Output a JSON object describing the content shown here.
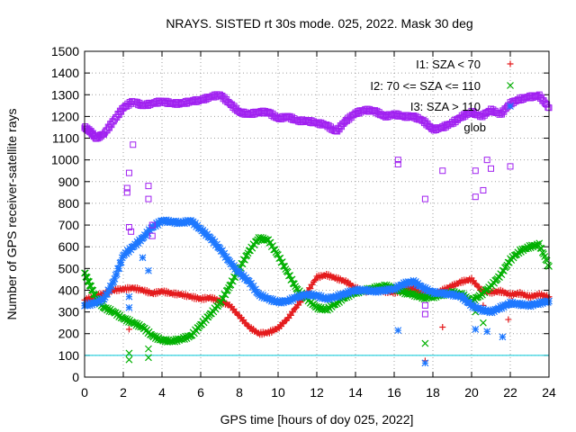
{
  "chart_data": {
    "type": "scatter",
    "title": "NRAYS. SISTED rt 30s mode. 025, 2022. Mask 30 deg",
    "xlabel": "GPS time [hours of doy 025, 2022]",
    "ylabel": "Number of GPS receiver-satellite rays",
    "xlim": [
      0,
      24
    ],
    "ylim": [
      0,
      1500
    ],
    "xticks": [
      0,
      2,
      4,
      6,
      8,
      10,
      12,
      14,
      16,
      18,
      20,
      22,
      24
    ],
    "xtick_labels": [
      "0",
      "2",
      "4",
      "6",
      "8",
      "10",
      "12",
      "14",
      "16",
      "18",
      "20",
      "22",
      "24"
    ],
    "yticks": [
      0,
      100,
      200,
      300,
      400,
      500,
      600,
      700,
      800,
      900,
      1000,
      1100,
      1200,
      1300,
      1400,
      1500
    ],
    "ytick_labels": [
      "0",
      "100",
      "200",
      "300",
      "400",
      "500",
      "600",
      "700",
      "800",
      "900",
      "1000",
      "1100",
      "1200",
      "1300",
      "1400",
      "1500"
    ],
    "grid": true,
    "legend_position": "top-right",
    "reference_line": {
      "y": 100,
      "color": "#00c8d8"
    },
    "series": [
      {
        "name": "I1: SZA < 70",
        "marker": "plus",
        "color": "#e41a1c",
        "points": [
          [
            0,
            355
          ],
          [
            0.5,
            370
          ],
          [
            1,
            385
          ],
          [
            1.5,
            400
          ],
          [
            2,
            405
          ],
          [
            2.5,
            410
          ],
          [
            3,
            400
          ],
          [
            3.5,
            385
          ],
          [
            4,
            395
          ],
          [
            4.5,
            385
          ],
          [
            5,
            380
          ],
          [
            5.5,
            370
          ],
          [
            6,
            360
          ],
          [
            6.5,
            365
          ],
          [
            7,
            350
          ],
          [
            7.5,
            330
          ],
          [
            8,
            280
          ],
          [
            8.5,
            230
          ],
          [
            9,
            200
          ],
          [
            9.5,
            205
          ],
          [
            10,
            225
          ],
          [
            10.5,
            270
          ],
          [
            11,
            330
          ],
          [
            11.5,
            390
          ],
          [
            12,
            460
          ],
          [
            12.5,
            470
          ],
          [
            13,
            455
          ],
          [
            13.5,
            440
          ],
          [
            14,
            410
          ],
          [
            14.5,
            395
          ],
          [
            15,
            400
          ],
          [
            15.5,
            395
          ],
          [
            16,
            390
          ],
          [
            16.5,
            400
          ],
          [
            17,
            410
          ],
          [
            17.5,
            380
          ],
          [
            18,
            380
          ],
          [
            18.5,
            400
          ],
          [
            19,
            420
          ],
          [
            19.5,
            440
          ],
          [
            20,
            450
          ],
          [
            20.5,
            400
          ],
          [
            21,
            390
          ],
          [
            21.5,
            395
          ],
          [
            22,
            380
          ],
          [
            22.5,
            385
          ],
          [
            23,
            370
          ],
          [
            23.5,
            380
          ],
          [
            24,
            370
          ]
        ],
        "outliers": [
          [
            2.3,
            220
          ],
          [
            17.6,
            75
          ],
          [
            18.5,
            230
          ],
          [
            21.9,
            265
          ],
          [
            20.6,
            330
          ],
          [
            22.1,
            350
          ]
        ]
      },
      {
        "name": "I2: 70 <= SZA <= 110",
        "marker": "cross",
        "color": "#00b000",
        "points": [
          [
            0,
            480
          ],
          [
            0.3,
            420
          ],
          [
            0.6,
            360
          ],
          [
            1,
            320
          ],
          [
            1.5,
            300
          ],
          [
            2,
            270
          ],
          [
            2.5,
            250
          ],
          [
            3,
            230
          ],
          [
            3.5,
            190
          ],
          [
            4,
            170
          ],
          [
            4.5,
            165
          ],
          [
            5,
            175
          ],
          [
            5.5,
            190
          ],
          [
            6,
            240
          ],
          [
            6.5,
            290
          ],
          [
            7,
            340
          ],
          [
            7.5,
            420
          ],
          [
            8,
            500
          ],
          [
            8.5,
            580
          ],
          [
            9,
            640
          ],
          [
            9.5,
            630
          ],
          [
            10,
            560
          ],
          [
            10.5,
            480
          ],
          [
            11,
            400
          ],
          [
            11.5,
            360
          ],
          [
            12,
            320
          ],
          [
            12.5,
            310
          ],
          [
            13,
            340
          ],
          [
            13.5,
            370
          ],
          [
            14,
            390
          ],
          [
            14.5,
            400
          ],
          [
            15,
            410
          ],
          [
            15.5,
            420
          ],
          [
            16,
            410
          ],
          [
            16.5,
            390
          ],
          [
            17,
            380
          ],
          [
            17.5,
            365
          ],
          [
            18,
            370
          ],
          [
            18.5,
            380
          ],
          [
            19,
            390
          ],
          [
            19.5,
            380
          ],
          [
            20,
            350
          ],
          [
            20.5,
            380
          ],
          [
            21,
            420
          ],
          [
            21.5,
            470
          ],
          [
            22,
            540
          ],
          [
            22.5,
            580
          ],
          [
            23,
            600
          ],
          [
            23.5,
            610
          ],
          [
            24,
            510
          ]
        ],
        "outliers": [
          [
            2.3,
            80
          ],
          [
            2.3,
            110
          ],
          [
            3.3,
            90
          ],
          [
            3.3,
            130
          ],
          [
            17.6,
            155
          ],
          [
            20.2,
            300
          ],
          [
            20.6,
            250
          ]
        ]
      },
      {
        "name": "I3: SZA > 110",
        "marker": "star",
        "color": "#1e78ff",
        "points": [
          [
            0,
            330
          ],
          [
            0.5,
            340
          ],
          [
            1,
            360
          ],
          [
            1.5,
            440
          ],
          [
            2,
            560
          ],
          [
            2.5,
            600
          ],
          [
            3,
            640
          ],
          [
            3.5,
            690
          ],
          [
            4,
            720
          ],
          [
            4.5,
            715
          ],
          [
            5,
            710
          ],
          [
            5.5,
            720
          ],
          [
            6,
            680
          ],
          [
            6.5,
            640
          ],
          [
            7,
            590
          ],
          [
            7.5,
            530
          ],
          [
            8,
            480
          ],
          [
            8.5,
            440
          ],
          [
            9,
            380
          ],
          [
            9.5,
            360
          ],
          [
            10,
            345
          ],
          [
            10.5,
            350
          ],
          [
            11,
            370
          ],
          [
            11.5,
            380
          ],
          [
            12,
            375
          ],
          [
            12.5,
            360
          ],
          [
            13,
            370
          ],
          [
            13.5,
            385
          ],
          [
            14,
            400
          ],
          [
            14.5,
            400
          ],
          [
            15,
            395
          ],
          [
            15.5,
            400
          ],
          [
            16,
            405
          ],
          [
            16.5,
            430
          ],
          [
            17,
            440
          ],
          [
            17.5,
            410
          ],
          [
            18,
            390
          ],
          [
            18.5,
            385
          ],
          [
            19,
            380
          ],
          [
            19.5,
            370
          ],
          [
            20,
            330
          ],
          [
            20.5,
            310
          ],
          [
            21,
            300
          ],
          [
            21.5,
            320
          ],
          [
            22,
            340
          ],
          [
            22.5,
            335
          ],
          [
            23,
            330
          ],
          [
            23.5,
            340
          ],
          [
            24,
            350
          ]
        ],
        "outliers": [
          [
            2.3,
            370
          ],
          [
            2.3,
            320
          ],
          [
            3,
            550
          ],
          [
            3.3,
            490
          ],
          [
            16.2,
            215
          ],
          [
            17.6,
            65
          ],
          [
            20.2,
            220
          ],
          [
            20.8,
            210
          ],
          [
            21.6,
            185
          ]
        ]
      },
      {
        "name": "global",
        "legend_partial": "glob",
        "marker": "square",
        "color": "#a020f0",
        "points": [
          [
            0,
            1150
          ],
          [
            0.3,
            1130
          ],
          [
            0.6,
            1100
          ],
          [
            1,
            1120
          ],
          [
            1.5,
            1180
          ],
          [
            2,
            1240
          ],
          [
            2.5,
            1270
          ],
          [
            3,
            1250
          ],
          [
            3.5,
            1260
          ],
          [
            4,
            1270
          ],
          [
            4.5,
            1260
          ],
          [
            5,
            1260
          ],
          [
            5.5,
            1270
          ],
          [
            6,
            1275
          ],
          [
            6.5,
            1290
          ],
          [
            7,
            1300
          ],
          [
            7.5,
            1260
          ],
          [
            8,
            1220
          ],
          [
            8.5,
            1210
          ],
          [
            9,
            1220
          ],
          [
            9.5,
            1220
          ],
          [
            10,
            1190
          ],
          [
            10.5,
            1200
          ],
          [
            11,
            1180
          ],
          [
            11.5,
            1180
          ],
          [
            12,
            1170
          ],
          [
            12.5,
            1160
          ],
          [
            13,
            1130
          ],
          [
            13.5,
            1180
          ],
          [
            14,
            1215
          ],
          [
            14.5,
            1230
          ],
          [
            15,
            1225
          ],
          [
            15.5,
            1200
          ],
          [
            16,
            1210
          ],
          [
            16.5,
            1200
          ],
          [
            17,
            1200
          ],
          [
            17.5,
            1180
          ],
          [
            18,
            1140
          ],
          [
            18.5,
            1150
          ],
          [
            19,
            1170
          ],
          [
            19.5,
            1200
          ],
          [
            20,
            1220
          ],
          [
            20.5,
            1200
          ],
          [
            21,
            1230
          ],
          [
            21.5,
            1210
          ],
          [
            22,
            1260
          ],
          [
            22.5,
            1280
          ],
          [
            23,
            1290
          ],
          [
            23.5,
            1295
          ],
          [
            24,
            1240
          ]
        ],
        "outliers": [
          [
            2.2,
            870
          ],
          [
            2.2,
            850
          ],
          [
            2.3,
            940
          ],
          [
            2.3,
            690
          ],
          [
            2.4,
            670
          ],
          [
            2.5,
            1070
          ],
          [
            3.3,
            880
          ],
          [
            3.3,
            820
          ],
          [
            3.5,
            700
          ],
          [
            3.5,
            650
          ],
          [
            16.2,
            1000
          ],
          [
            16.2,
            980
          ],
          [
            17.6,
            820
          ],
          [
            17.6,
            290
          ],
          [
            17.6,
            330
          ],
          [
            18.5,
            950
          ],
          [
            20.2,
            830
          ],
          [
            20.2,
            950
          ],
          [
            20.6,
            860
          ],
          [
            20.8,
            1000
          ],
          [
            21,
            960
          ],
          [
            22,
            970
          ]
        ]
      }
    ]
  }
}
